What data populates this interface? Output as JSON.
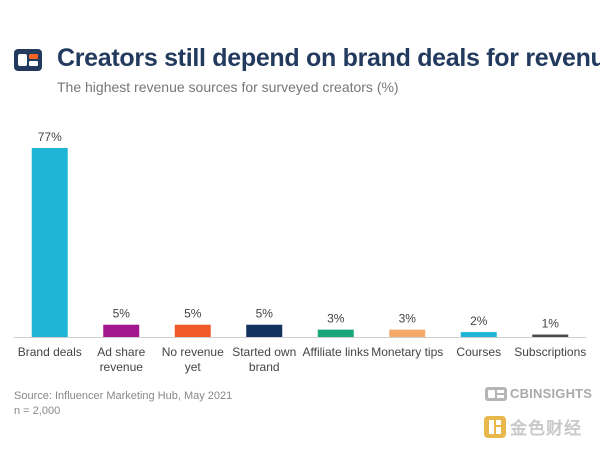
{
  "header": {
    "title": "Creators still depend on brand deals for revenue",
    "subtitle": "The highest revenue sources for surveyed creators (%)"
  },
  "footer": {
    "source": "Source: Influencer Marketing Hub, May 2021",
    "sample": "n = 2,000",
    "brand": "CBINSIGHTS",
    "watermark": "金色财经"
  },
  "colors": {
    "brand_navy": "#223a5e",
    "brand_orange": "#f26522"
  },
  "chart_data": {
    "type": "bar",
    "title": "Creators still depend on brand deals for revenue",
    "subtitle": "The highest revenue sources for surveyed creators (%)",
    "xlabel": "",
    "ylabel": "",
    "ylim": [
      0,
      77
    ],
    "grid": false,
    "categories": [
      "Brand deals",
      "Ad share revenue",
      "No revenue yet",
      "Started own brand",
      "Affiliate links",
      "Monetary tips",
      "Courses",
      "Subscriptions"
    ],
    "category_lines": [
      [
        "Brand deals"
      ],
      [
        "Ad share",
        "revenue"
      ],
      [
        "No revenue",
        "yet"
      ],
      [
        "Started own",
        "brand"
      ],
      [
        "Affiliate links"
      ],
      [
        "Monetary tips"
      ],
      [
        "Courses"
      ],
      [
        "Subscriptions"
      ]
    ],
    "values": [
      77,
      5,
      5,
      5,
      3,
      3,
      2,
      1
    ],
    "value_labels": [
      "77%",
      "5%",
      "5%",
      "5%",
      "3%",
      "3%",
      "2%",
      "1%"
    ],
    "colors": [
      "#1fb5d9",
      "#a3178c",
      "#f05a28",
      "#13335e",
      "#18a57a",
      "#f5a96b",
      "#1fb5d9",
      "#4a4a4a"
    ]
  }
}
